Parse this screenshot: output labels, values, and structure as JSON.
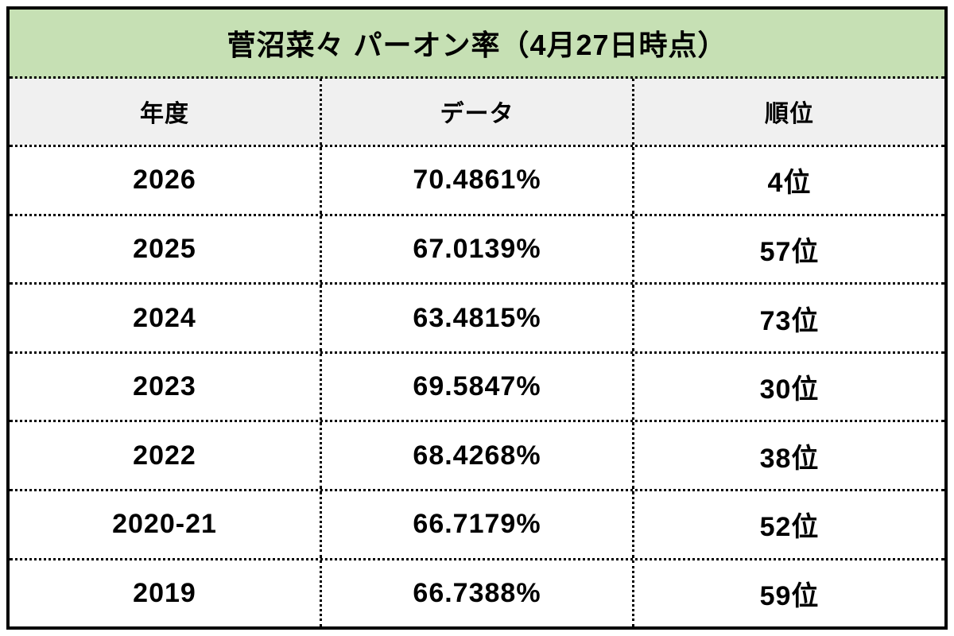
{
  "table": {
    "title": "菅沼菜々 パーオン率（4月27日時点）",
    "columns": {
      "year": "年度",
      "data": "データ",
      "rank": "順位"
    },
    "rows": [
      {
        "year": "2026",
        "value": "70.4861%",
        "rank": "4位"
      },
      {
        "year": "2025",
        "value": "67.0139%",
        "rank": "57位"
      },
      {
        "year": "2024",
        "value": "63.4815%",
        "rank": "73位"
      },
      {
        "year": "2023",
        "value": "69.5847%",
        "rank": "30位"
      },
      {
        "year": "2022",
        "value": "68.4268%",
        "rank": "38位"
      },
      {
        "year": "2020-21",
        "value": "66.7179%",
        "rank": "52位"
      },
      {
        "year": "2019",
        "value": "66.7388%",
        "rank": "59位"
      }
    ],
    "colors": {
      "title_bg": "#c6e0b4",
      "header_bg": "#f0f0f0",
      "border": "#000000",
      "text": "#000000"
    }
  },
  "chart_data": {
    "type": "table",
    "title": "菅沼菜々 パーオン率（4月27日時点）",
    "columns": [
      "年度",
      "データ",
      "順位"
    ],
    "rows": [
      [
        "2026",
        "70.4861%",
        "4位"
      ],
      [
        "2025",
        "67.0139%",
        "57位"
      ],
      [
        "2024",
        "63.4815%",
        "73位"
      ],
      [
        "2023",
        "69.5847%",
        "30位"
      ],
      [
        "2022",
        "68.4268%",
        "38位"
      ],
      [
        "2020-21",
        "66.7179%",
        "52位"
      ],
      [
        "2019",
        "66.7388%",
        "59位"
      ]
    ],
    "values_percent": [
      70.4861,
      67.0139,
      63.4815,
      69.5847,
      68.4268,
      66.7179,
      66.7388
    ],
    "ranks": [
      4,
      57,
      73,
      30,
      38,
      52,
      59
    ]
  }
}
